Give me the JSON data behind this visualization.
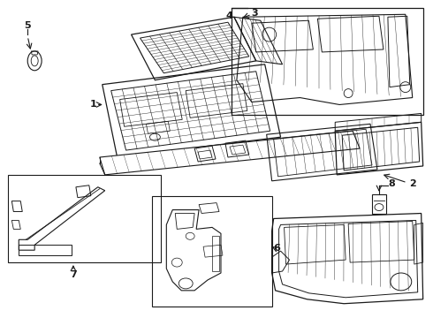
{
  "background_color": "#ffffff",
  "line_color": "#1a1a1a",
  "fig_width": 4.9,
  "fig_height": 3.6,
  "dpi": 100,
  "gray": "#888888",
  "light_gray": "#cccccc"
}
